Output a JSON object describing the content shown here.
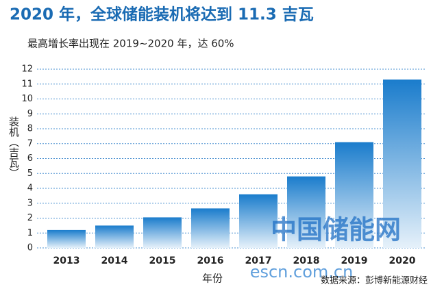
{
  "chart_data": {
    "type": "bar",
    "title": "2020 年，全球储能装机将达到 11.3 吉瓦",
    "subtitle": "最高增长率出现在 2019~2020 年，达 60%",
    "y_label": "装机（吉瓦）",
    "x_label": "年份",
    "source": "数据来源：彭博新能源财经",
    "watermark": "中国储能网",
    "watermark_url": "escn.com.cn",
    "categories": [
      "2013",
      "2014",
      "2015",
      "2016",
      "2017",
      "2018",
      "2019",
      "2020"
    ],
    "values": [
      1.2,
      1.5,
      2.05,
      2.65,
      3.6,
      4.8,
      7.1,
      11.3
    ],
    "color": "#1a7ccc",
    "ylim": [
      0,
      12
    ],
    "yticks": [
      0,
      1,
      2,
      3,
      4,
      5,
      6,
      7,
      8,
      9,
      10,
      11,
      12
    ],
    "grid": true
  }
}
